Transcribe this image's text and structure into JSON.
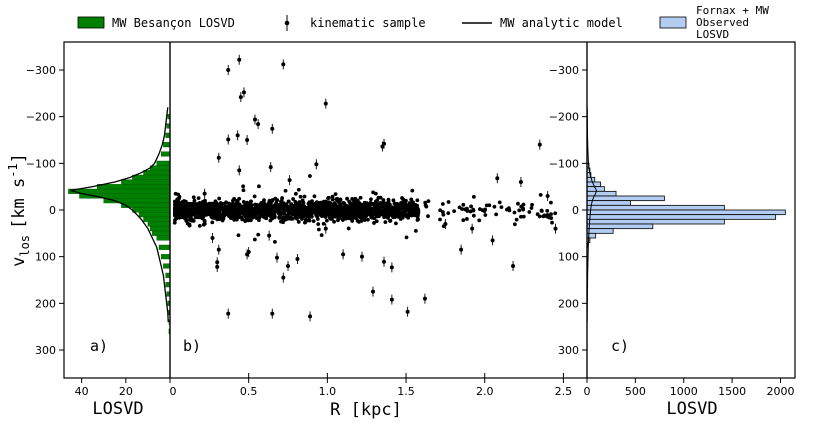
{
  "legend": {
    "items": [
      {
        "label": "MW Besançon LOSVD",
        "kind": "patch",
        "color": "#008000"
      },
      {
        "label": "kinematic sample",
        "kind": "errorbar",
        "color": "#000000"
      },
      {
        "label": "MW analytic model",
        "kind": "line",
        "color": "#000000"
      },
      {
        "label": "Fornax + MW Observed LOSVD",
        "kind": "patch",
        "color": "#b3cdf2",
        "lines": [
          "Fornax + MW",
          "Observed",
          "LOSVD"
        ]
      }
    ]
  },
  "ylabel": "v",
  "ylabel_sub": "los",
  "ylabel_unit": "[km s",
  "ylabel_exp": "-1",
  "ylabel_close": "]",
  "chart_data": [
    {
      "panel": "a)",
      "type": "bar",
      "orientation": "horizontal",
      "xlabel": "LOSVD",
      "xlim": [
        48,
        0
      ],
      "xticks": [
        40,
        20,
        0
      ],
      "ylim": [
        -360,
        360
      ],
      "yticks": [
        -300,
        -200,
        -100,
        0,
        100,
        200,
        300
      ],
      "ytick_labels": [
        "−300",
        "−200",
        "−100",
        "0",
        "100",
        "200",
        "300"
      ],
      "series": [
        {
          "name": "MW Besançon LOSVD",
          "bin_centers": [
            -200,
            -180,
            -160,
            -140,
            -120,
            -100,
            -90,
            -80,
            -70,
            -60,
            -50,
            -40,
            -30,
            -20,
            -10,
            0,
            10,
            20,
            30,
            40,
            50,
            60,
            80,
            100,
            120,
            140,
            160,
            180,
            200,
            220,
            240,
            260
          ],
          "values": [
            1,
            1.5,
            2,
            3,
            4,
            6,
            9,
            12,
            17,
            22,
            33,
            46,
            41,
            30,
            22,
            17,
            14,
            12,
            10,
            9,
            8,
            6,
            5,
            4,
            3,
            2,
            2,
            1.5,
            1,
            1,
            0.5,
            0.5
          ]
        },
        {
          "name": "MW analytic model",
          "v": [
            -220,
            -200,
            -180,
            -160,
            -140,
            -120,
            -100,
            -90,
            -80,
            -70,
            -60,
            -50,
            -42,
            -35,
            -28,
            -20,
            -10,
            0,
            10,
            20,
            40,
            60,
            80,
            100,
            120,
            140,
            160,
            180,
            200,
            220,
            240
          ],
          "values": [
            1,
            1.5,
            2,
            2.5,
            3.5,
            5,
            7,
            9,
            13,
            18,
            25,
            35,
            45,
            40,
            32,
            25,
            20,
            17,
            15,
            13,
            10,
            8,
            6,
            5,
            4,
            3,
            2.5,
            2,
            1.5,
            1,
            0.8
          ]
        }
      ]
    },
    {
      "panel": "b)",
      "type": "scatter",
      "xlabel": "R [kpc]",
      "xlim": [
        0,
        2.65
      ],
      "xticks": [
        0,
        0.5,
        1.0,
        1.5,
        2.0,
        2.5
      ],
      "xtick_labels": [
        "0",
        "0.5",
        "1.0",
        "1.5",
        "2.0",
        "2.5"
      ],
      "ylim": [
        -360,
        360
      ],
      "series": [
        {
          "name": "kinematic sample",
          "outliers": [
            [
              0.37,
              -300
            ],
            [
              0.44,
              -322
            ],
            [
              0.72,
              -312
            ],
            [
              0.45,
              -242
            ],
            [
              0.47,
              -252
            ],
            [
              0.54,
              -194
            ],
            [
              0.65,
              -174
            ],
            [
              0.56,
              -184
            ],
            [
              0.43,
              -160
            ],
            [
              0.37,
              -151
            ],
            [
              0.49,
              -150
            ],
            [
              0.99,
              -228
            ],
            [
              0.31,
              -112
            ],
            [
              0.44,
              -85
            ],
            [
              0.64,
              -92
            ],
            [
              0.93,
              -98
            ],
            [
              0.76,
              -64
            ],
            [
              1.36,
              -142
            ],
            [
              1.35,
              -136
            ],
            [
              2.35,
              -140
            ],
            [
              0.22,
              -35
            ],
            [
              2.08,
              -68
            ],
            [
              2.23,
              -60
            ],
            [
              2.4,
              -30
            ],
            [
              0.27,
              60
            ],
            [
              0.31,
              85
            ],
            [
              0.3,
              112
            ],
            [
              0.3,
              122
            ],
            [
              0.5,
              90
            ],
            [
              0.49,
              95
            ],
            [
              0.68,
              102
            ],
            [
              0.75,
              120
            ],
            [
              0.81,
              105
            ],
            [
              1.22,
              100
            ],
            [
              1.1,
              95
            ],
            [
              1.36,
              111
            ],
            [
              1.41,
              123
            ],
            [
              0.72,
              145
            ],
            [
              1.29,
              175
            ],
            [
              1.41,
              192
            ],
            [
              1.51,
              218
            ],
            [
              0.89,
              228
            ],
            [
              1.62,
              190
            ],
            [
              0.65,
              222
            ],
            [
              0.37,
              222
            ],
            [
              1.85,
              85
            ],
            [
              2.18,
              120
            ],
            [
              2.05,
              65
            ],
            [
              2.45,
              40
            ],
            [
              1.92,
              40
            ],
            [
              1.75,
              30
            ],
            [
              0.99,
              40
            ],
            [
              0.63,
              55
            ]
          ]
        }
      ]
    },
    {
      "panel": "c)",
      "type": "bar",
      "orientation": "horizontal",
      "xlabel": "LOSVD",
      "xlim": [
        0,
        2150
      ],
      "xticks": [
        0,
        500,
        1000,
        1500,
        2000
      ],
      "ylim": [
        -360,
        360
      ],
      "yticks": [
        -300,
        -200,
        -100,
        0,
        100,
        200,
        300
      ],
      "ytick_labels": [
        "−300",
        "−200",
        "−100",
        "0",
        "100",
        "200",
        "300"
      ],
      "series": [
        {
          "name": "Fornax + MW Observed LOSVD",
          "bin_centers": [
            -95,
            -85,
            -75,
            -65,
            -55,
            -45,
            -35,
            -25,
            -15,
            -5,
            5,
            15,
            25,
            35,
            45,
            55,
            65,
            75
          ],
          "values": [
            20,
            30,
            40,
            80,
            140,
            180,
            300,
            800,
            450,
            1420,
            2050,
            1950,
            1420,
            680,
            270,
            90,
            30,
            10
          ]
        }
      ]
    }
  ]
}
